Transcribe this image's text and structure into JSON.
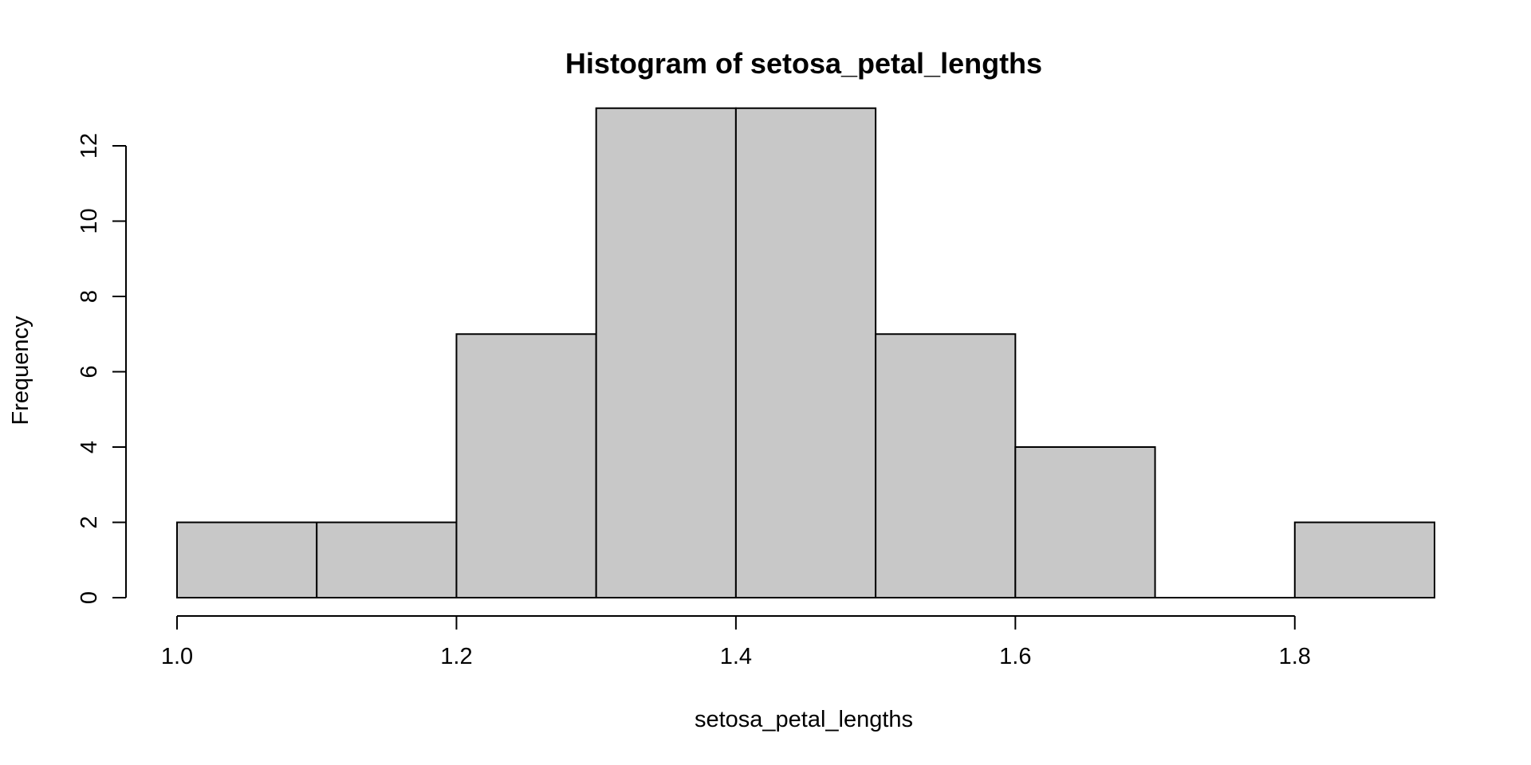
{
  "chart_data": {
    "type": "bar",
    "title": "Histogram of setosa_petal_lengths",
    "xlabel": "setosa_petal_lengths",
    "ylabel": "Frequency",
    "bins": [
      {
        "from": 1.0,
        "to": 1.1,
        "count": 2
      },
      {
        "from": 1.1,
        "to": 1.2,
        "count": 2
      },
      {
        "from": 1.2,
        "to": 1.3,
        "count": 7
      },
      {
        "from": 1.3,
        "to": 1.4,
        "count": 13
      },
      {
        "from": 1.4,
        "to": 1.5,
        "count": 13
      },
      {
        "from": 1.5,
        "to": 1.6,
        "count": 7
      },
      {
        "from": 1.6,
        "to": 1.7,
        "count": 4
      },
      {
        "from": 1.7,
        "to": 1.8,
        "count": 0
      },
      {
        "from": 1.8,
        "to": 1.9,
        "count": 2
      }
    ],
    "x_ticks": [
      1.0,
      1.2,
      1.4,
      1.6,
      1.8
    ],
    "x_tick_labels": [
      "1.0",
      "1.2",
      "1.4",
      "1.6",
      "1.8"
    ],
    "y_ticks": [
      0,
      2,
      4,
      6,
      8,
      10,
      12
    ],
    "y_tick_labels": [
      "0",
      "2",
      "4",
      "6",
      "8",
      "10",
      "12"
    ],
    "xlim": [
      1.0,
      1.9
    ],
    "ylim": [
      0,
      13
    ],
    "bar_color": "#c8c8c8",
    "grid": false
  }
}
